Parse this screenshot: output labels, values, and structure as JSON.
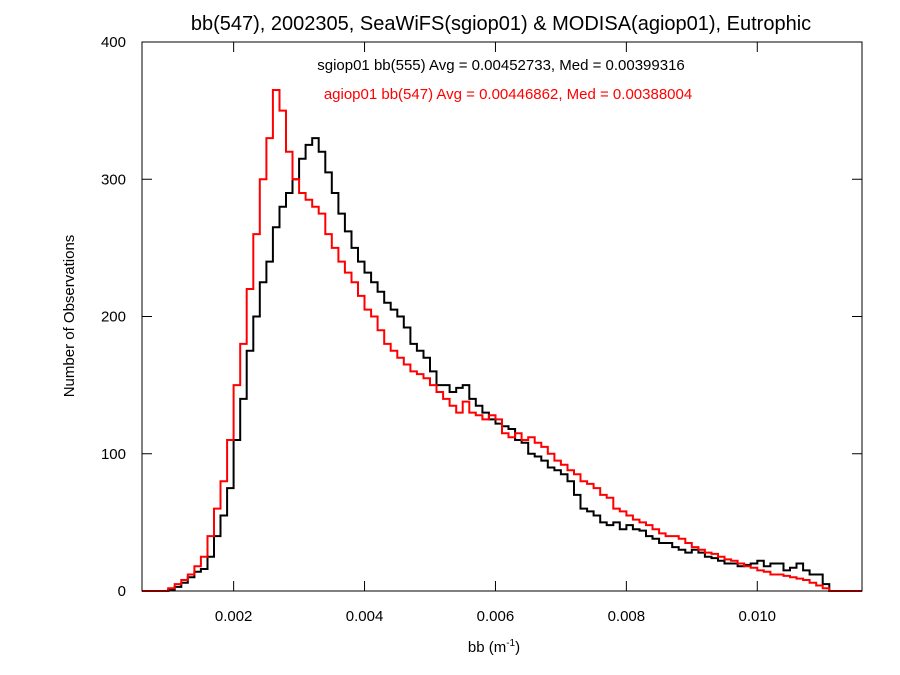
{
  "chart_data": {
    "type": "line",
    "subtype": "step-histogram",
    "title": "bb(547), 2002305, SeaWiFS(sgiop01) & MODISA(agiop01), Eutrophic",
    "xlabel": "bb (m",
    "xlabel_sup": "-1",
    "xlabel_close": ")",
    "ylabel": "Number of Observations",
    "xlim": [
      0.0006,
      0.0116
    ],
    "ylim": [
      0,
      400
    ],
    "x_ticks": [
      0.002,
      0.004,
      0.006,
      0.008,
      0.01
    ],
    "x_tick_labels": [
      "0.002",
      "0.004",
      "0.006",
      "0.008",
      "0.010"
    ],
    "y_ticks": [
      0,
      100,
      200,
      300,
      400
    ],
    "y_tick_labels": [
      "0",
      "100",
      "200",
      "300",
      "400"
    ],
    "grid": false,
    "legend_position": "top-center",
    "series": [
      {
        "label": "sgiop01 bb(555) Avg = 0.00452733, Med = 0.00399316",
        "color": "#000000",
        "x": [
          0.0006,
          0.001,
          0.0011,
          0.0012,
          0.0013,
          0.0014,
          0.0015,
          0.0016,
          0.0017,
          0.0018,
          0.0019,
          0.002,
          0.0021,
          0.0022,
          0.0023,
          0.0024,
          0.0025,
          0.0026,
          0.0027,
          0.0028,
          0.0029,
          0.003,
          0.0031,
          0.0032,
          0.0033,
          0.0034,
          0.0035,
          0.0036,
          0.0037,
          0.0038,
          0.0039,
          0.004,
          0.0041,
          0.0042,
          0.0043,
          0.0044,
          0.0045,
          0.0046,
          0.0047,
          0.0048,
          0.0049,
          0.005,
          0.0051,
          0.0052,
          0.0053,
          0.0054,
          0.0055,
          0.0056,
          0.0057,
          0.0058,
          0.0059,
          0.006,
          0.0061,
          0.0062,
          0.0063,
          0.0064,
          0.0065,
          0.0066,
          0.0067,
          0.0068,
          0.0069,
          0.007,
          0.0071,
          0.0072,
          0.0073,
          0.0074,
          0.0075,
          0.0076,
          0.0077,
          0.0078,
          0.0079,
          0.008,
          0.0081,
          0.0082,
          0.0083,
          0.0084,
          0.0085,
          0.0086,
          0.0087,
          0.0088,
          0.0089,
          0.009,
          0.0091,
          0.0092,
          0.0093,
          0.0094,
          0.0095,
          0.0096,
          0.0097,
          0.0098,
          0.0099,
          0.01,
          0.0101,
          0.0102,
          0.0103,
          0.0104,
          0.0105,
          0.0106,
          0.0107,
          0.0108,
          0.0109,
          0.011,
          0.0111,
          0.0116
        ],
        "y": [
          0,
          1,
          3,
          6,
          10,
          14,
          16,
          25,
          40,
          55,
          75,
          110,
          140,
          175,
          200,
          225,
          240,
          265,
          280,
          290,
          300,
          315,
          325,
          330,
          320,
          305,
          290,
          275,
          262,
          250,
          240,
          232,
          225,
          218,
          210,
          205,
          200,
          192,
          180,
          175,
          170,
          160,
          150,
          150,
          145,
          148,
          150,
          140,
          135,
          130,
          125,
          122,
          120,
          118,
          110,
          108,
          100,
          98,
          95,
          90,
          88,
          85,
          80,
          70,
          60,
          58,
          55,
          50,
          48,
          50,
          45,
          48,
          45,
          44,
          40,
          38,
          35,
          35,
          32,
          30,
          28,
          30,
          28,
          25,
          24,
          22,
          20,
          20,
          18,
          19,
          20,
          22,
          18,
          20,
          20,
          15,
          17,
          20,
          15,
          12,
          12,
          5,
          0,
          0
        ]
      },
      {
        "label": "agiop01 bb(547) Avg = 0.00446862, Med = 0.00388004",
        "color": "#ff0000",
        "x": [
          0.0006,
          0.001,
          0.0011,
          0.0012,
          0.0013,
          0.0014,
          0.0015,
          0.0016,
          0.0017,
          0.0018,
          0.0019,
          0.002,
          0.0021,
          0.0022,
          0.0023,
          0.0024,
          0.0025,
          0.0026,
          0.0027,
          0.0028,
          0.0029,
          0.003,
          0.0031,
          0.0032,
          0.0033,
          0.0034,
          0.0035,
          0.0036,
          0.0037,
          0.0038,
          0.0039,
          0.004,
          0.0041,
          0.0042,
          0.0043,
          0.0044,
          0.0045,
          0.0046,
          0.0047,
          0.0048,
          0.0049,
          0.005,
          0.0051,
          0.0052,
          0.0053,
          0.0054,
          0.0055,
          0.0056,
          0.0057,
          0.0058,
          0.0059,
          0.006,
          0.0061,
          0.0062,
          0.0063,
          0.0064,
          0.0065,
          0.0066,
          0.0067,
          0.0068,
          0.0069,
          0.007,
          0.0071,
          0.0072,
          0.0073,
          0.0074,
          0.0075,
          0.0076,
          0.0077,
          0.0078,
          0.0079,
          0.008,
          0.0081,
          0.0082,
          0.0083,
          0.0084,
          0.0085,
          0.0086,
          0.0087,
          0.0088,
          0.0089,
          0.009,
          0.0091,
          0.0092,
          0.0093,
          0.0094,
          0.0095,
          0.0096,
          0.0097,
          0.0098,
          0.0099,
          0.01,
          0.0101,
          0.0102,
          0.0103,
          0.0104,
          0.0105,
          0.0106,
          0.0107,
          0.0108,
          0.0109,
          0.011,
          0.0111,
          0.0116
        ],
        "y": [
          0,
          2,
          5,
          8,
          12,
          18,
          25,
          40,
          60,
          80,
          110,
          150,
          180,
          220,
          260,
          300,
          330,
          365,
          350,
          320,
          300,
          290,
          285,
          280,
          275,
          260,
          250,
          240,
          232,
          225,
          215,
          205,
          200,
          190,
          180,
          175,
          170,
          165,
          160,
          158,
          155,
          150,
          145,
          140,
          135,
          130,
          138,
          130,
          128,
          125,
          128,
          125,
          115,
          112,
          115,
          110,
          112,
          108,
          105,
          100,
          95,
          92,
          88,
          85,
          80,
          78,
          75,
          70,
          68,
          60,
          58,
          55,
          52,
          50,
          48,
          45,
          42,
          40,
          40,
          38,
          35,
          32,
          30,
          28,
          27,
          25,
          23,
          22,
          20,
          18,
          17,
          15,
          14,
          12,
          12,
          11,
          10,
          9,
          8,
          6,
          4,
          2,
          0,
          0
        ]
      }
    ]
  }
}
